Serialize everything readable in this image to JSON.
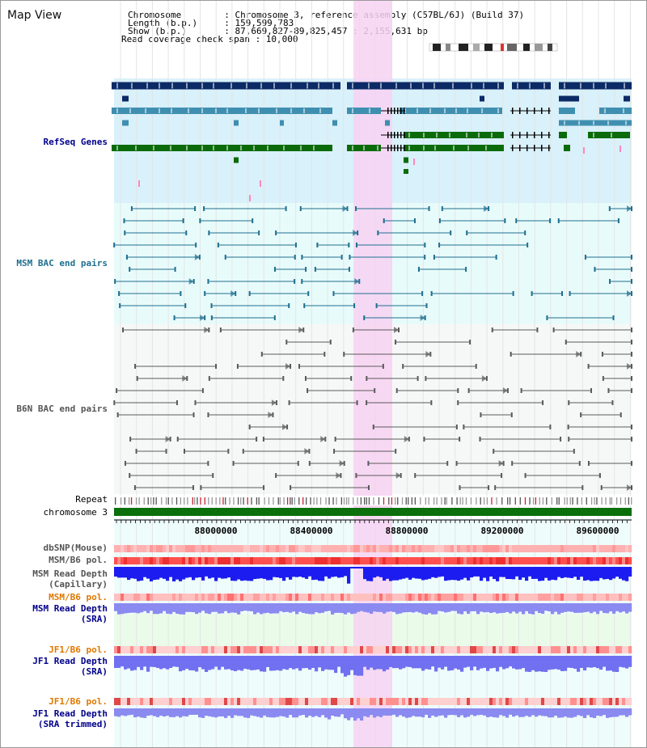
{
  "header": {
    "title": "Map View",
    "chromosome_line": "Chromosome        : Chromosome 3, reference assembly (C57BL/6J) (Build 37)",
    "length_line": "Length (b.p.)     : 159,599,783",
    "show_line": "Show (b.p.)       : 87,669,827-89,825,457 : 2,155,631 bp",
    "coverage_line": "Read coverage check span : 10,000"
  },
  "tracks": {
    "refseq": "RefSeq Genes",
    "msm_bac": "MSM BAC end pairs",
    "b6n_bac": "B6N BAC end pairs",
    "repeat": "Repeat",
    "chromosome": "chromosome 3",
    "dbsnp": "dbSNP(Mouse)",
    "msm_b6_pol": "MSM/B6 pol.",
    "msm_depth_cap_1": "MSM Read Depth",
    "msm_depth_cap_2": "(Capillary)",
    "msm_b6_pol_2": "MSM/B6 pol.",
    "msm_depth_sra_1": "MSM Read Depth",
    "msm_depth_sra_2": "(SRA)",
    "jf1_b6_pol": "JF1/B6 pol.",
    "jf1_depth_sra_1": "JF1 Read Depth",
    "jf1_depth_sra_2": "(SRA)",
    "jf1_b6_pol_2": "JF1/B6 pol.",
    "jf1_depth_trim_1": "JF1 Read Depth",
    "jf1_depth_trim_2": "(SRA trimmed)"
  },
  "axis": {
    "ticks": [
      "88000000",
      "88400000",
      "88800000",
      "89200000",
      "89600000"
    ]
  },
  "colors": {
    "refseq_bg": "#d9f1fa",
    "bac_bg": "#e8fbfb",
    "highlight": "#f7d2f2",
    "gene_dark": "#0b2a66",
    "gene_mid": "#3f8fb0",
    "gene_green": "#0b6b0b",
    "msm_pair": "#1f6f8f",
    "b6n_pair": "#5a5a5a",
    "chromosome": "#0b700b",
    "depth_msm": "#1c1cf0",
    "depth_sra": "#8a8af0",
    "pol_red": "#f05050",
    "label_blue": "#00008b",
    "label_orange": "#e07800"
  }
}
